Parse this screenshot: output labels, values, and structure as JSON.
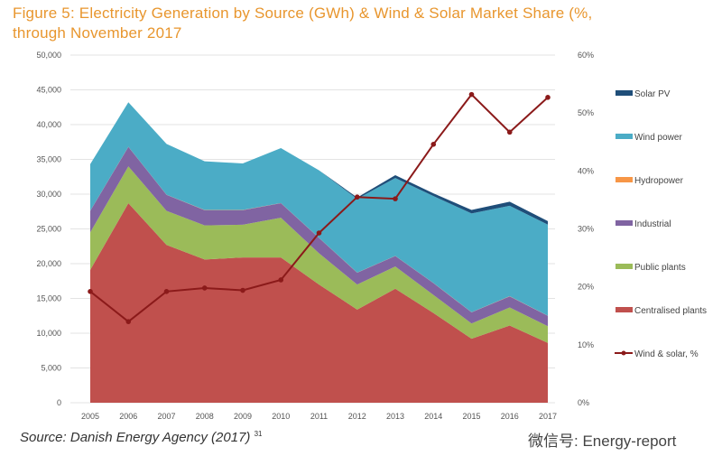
{
  "title_line1": "Figure 5: Electricity Generation by Source (GWh) & Wind & Solar Market Share (%,",
  "title_line2": "through November 2017",
  "source": "Source: Danish Energy Agency (2017)",
  "source_note": "31",
  "watermark": "微信号: Energy-report",
  "chart_data": {
    "type": "area",
    "stacked": true,
    "title": "Figure 5: Electricity Generation by Source (GWh) & Wind & Solar Market Share (%, through November 2017",
    "categories": [
      "2005",
      "2006",
      "2007",
      "2008",
      "2009",
      "2010",
      "2011",
      "2012",
      "2013",
      "2014",
      "2015",
      "2016",
      "2017"
    ],
    "y_left": {
      "min": 0,
      "max": 50000,
      "step": 5000,
      "tick_labels": [
        "0",
        "5,000",
        "10,000",
        "15,000",
        "20,000",
        "25,000",
        "30,000",
        "35,000",
        "40,000",
        "45,000",
        "50,000"
      ]
    },
    "y_right": {
      "min": 0,
      "max": 60,
      "step": 10,
      "tick_labels": [
        "0%",
        "10%",
        "20%",
        "30%",
        "40%",
        "50%",
        "60%"
      ]
    },
    "grid": true,
    "legend_position": "right",
    "series": [
      {
        "name": "Centralised plants",
        "color": "#c0504d",
        "values": [
          19100,
          28700,
          22700,
          20600,
          20900,
          20900,
          17000,
          13400,
          16400,
          12900,
          9200,
          11100,
          8600
        ]
      },
      {
        "name": "Public plants",
        "color": "#9bbb59",
        "values": [
          5400,
          5300,
          4900,
          4900,
          4700,
          5700,
          4500,
          3600,
          3200,
          2600,
          2200,
          2600,
          2400
        ]
      },
      {
        "name": "Industrial",
        "color": "#8064a2",
        "values": [
          3100,
          2800,
          2300,
          2200,
          2100,
          2100,
          2200,
          1700,
          1500,
          1700,
          1600,
          1600,
          1500
        ]
      },
      {
        "name": "Hydropower",
        "color": "#f79646",
        "values": [
          20,
          20,
          20,
          20,
          20,
          20,
          20,
          20,
          20,
          20,
          20,
          20,
          20
        ]
      },
      {
        "name": "Wind power",
        "color": "#4bacc6",
        "values": [
          6700,
          6400,
          7300,
          7000,
          6700,
          7900,
          9700,
          10600,
          11200,
          12500,
          14200,
          13000,
          13100
        ]
      },
      {
        "name": "Solar PV",
        "color": "#1f4e79",
        "values": [
          0,
          0,
          0,
          0,
          0,
          0,
          0,
          200,
          400,
          400,
          500,
          600,
          500
        ]
      }
    ],
    "line_series": {
      "name": "Wind & solar, %",
      "color": "#8b1a1a",
      "axis": "right",
      "values": [
        19.2,
        14.0,
        19.2,
        19.8,
        19.4,
        21.2,
        29.3,
        35.5,
        35.2,
        44.6,
        53.2,
        46.7,
        52.7
      ]
    },
    "legend_order": [
      "Solar PV",
      "Wind power",
      "Hydropower",
      "Industrial",
      "Public plants",
      "Centralised plants",
      "Wind & solar, %"
    ]
  }
}
